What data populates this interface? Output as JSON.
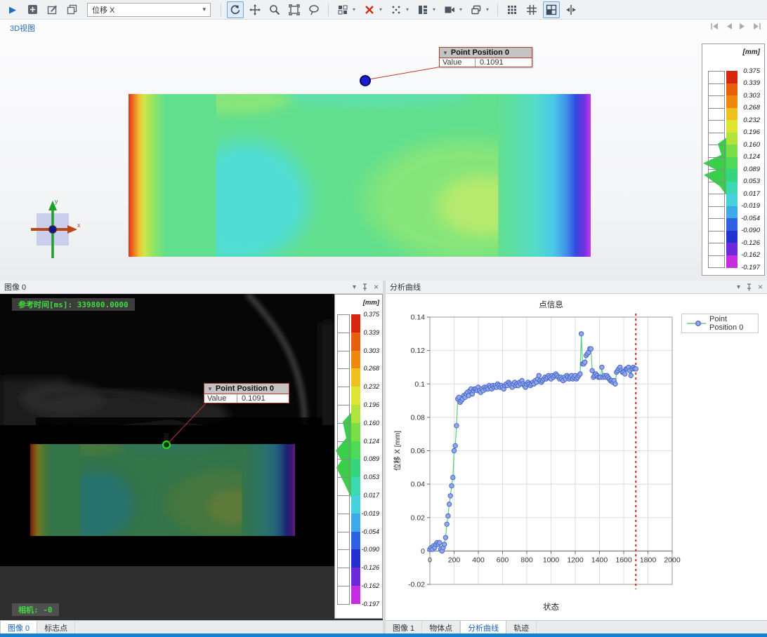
{
  "toolbar": {
    "field_value": "位移 X",
    "icons": [
      "play-icon",
      "add-icon",
      "edit-icon",
      "copy-icon",
      "rotate-icon",
      "pan-icon",
      "zoom-icon",
      "fit-view-icon",
      "balloon-label-icon",
      "fit-window-icon",
      "delete-icon",
      "points-icon",
      "columns-icon",
      "video-icon",
      "layers-icon",
      "grid-dense-icon",
      "grid-sparse-icon",
      "window-layout-icon",
      "collapse-icon"
    ]
  },
  "colors": {
    "accent_blue": "#1a6fc4",
    "status_bar": "#1282d2",
    "annotation_border": "#b03a2e",
    "hud_green": "#3fdc3f",
    "curve_line": "#5fcb7e",
    "marker_fill": "#8fa8ea",
    "marker_edge": "#4a66c8",
    "state_marker_line": "#dd2222"
  },
  "view3d": {
    "tab_label": "3D视图",
    "nav_icons": [
      "first-state-icon",
      "previous-state-icon",
      "next-state-icon",
      "last-state-icon"
    ],
    "triad": {
      "x_label": "x",
      "y_label": "y"
    },
    "annotation": {
      "header": "Point Position 0",
      "rows": [
        {
          "label": "Value",
          "value": "0.1091"
        }
      ]
    }
  },
  "colorbar": {
    "title": "[mm]",
    "labels": [
      "0.375",
      "0.339",
      "0.303",
      "0.268",
      "0.232",
      "0.196",
      "0.160",
      "0.124",
      "0.089",
      "0.053",
      "0.017",
      "-0.019",
      "-0.054",
      "-0.090",
      "-0.126",
      "-0.162",
      "-0.197"
    ],
    "colors": [
      "#d8250d",
      "#e85f0c",
      "#f0880e",
      "#eec11c",
      "#dfe532",
      "#b2e33c",
      "#7adf46",
      "#4ed957",
      "#35d57f",
      "#3cd9b0",
      "#45d2dc",
      "#3fa8e8",
      "#2f62e2",
      "#2430cf",
      "#6c2bda",
      "#c62ce0"
    ]
  },
  "image_panel": {
    "title": "图像 0",
    "time_label": "参考时间[ms]: 339800.0000",
    "camera_label": "相机: -0",
    "annotation": {
      "header": "Point Position 0",
      "rows": [
        {
          "label": "Value",
          "value": "0.1091"
        }
      ]
    },
    "tabs": [
      {
        "label": "图像 0"
      },
      {
        "label": "标志点"
      }
    ]
  },
  "curve_panel": {
    "title": "分析曲线",
    "tabs": [
      {
        "label": "图像 1"
      },
      {
        "label": "物体点"
      },
      {
        "label": "分析曲线"
      },
      {
        "label": "轨迹"
      }
    ]
  },
  "chart_data": {
    "type": "scatter",
    "title": "点信息",
    "xlabel": "状态",
    "ylabel": "位移 X [mm]",
    "xlim": [
      0,
      2000
    ],
    "ylim": [
      -0.02,
      0.14
    ],
    "xticks": [
      0,
      200,
      400,
      600,
      800,
      1000,
      1200,
      1400,
      1600,
      1800,
      2000
    ],
    "yticks": [
      -0.02,
      0,
      0.02,
      0.04,
      0.06,
      0.08,
      0.1,
      0.12,
      0.14
    ],
    "grid": true,
    "legend_position": "top-right",
    "current_state_line_x": 1700,
    "series": [
      {
        "name": "Point Position 0",
        "x": [
          0,
          10,
          20,
          30,
          40,
          50,
          60,
          70,
          80,
          90,
          100,
          110,
          120,
          130,
          140,
          150,
          160,
          170,
          180,
          190,
          200,
          210,
          220,
          230,
          240,
          250,
          260,
          270,
          280,
          290,
          300,
          310,
          320,
          330,
          340,
          350,
          360,
          370,
          380,
          390,
          400,
          410,
          420,
          430,
          440,
          450,
          460,
          470,
          480,
          490,
          500,
          510,
          520,
          530,
          540,
          550,
          560,
          570,
          580,
          590,
          600,
          610,
          620,
          630,
          640,
          650,
          660,
          670,
          680,
          690,
          700,
          710,
          720,
          730,
          740,
          750,
          760,
          770,
          780,
          790,
          800,
          810,
          820,
          830,
          840,
          850,
          860,
          870,
          880,
          890,
          900,
          910,
          920,
          930,
          940,
          950,
          960,
          970,
          980,
          990,
          1000,
          1010,
          1020,
          1030,
          1040,
          1050,
          1060,
          1070,
          1080,
          1090,
          1100,
          1110,
          1120,
          1130,
          1140,
          1150,
          1160,
          1170,
          1180,
          1190,
          1200,
          1210,
          1220,
          1230,
          1240,
          1250,
          1260,
          1270,
          1280,
          1290,
          1300,
          1310,
          1320,
          1330,
          1340,
          1350,
          1360,
          1370,
          1380,
          1390,
          1400,
          1410,
          1420,
          1430,
          1440,
          1450,
          1460,
          1470,
          1480,
          1490,
          1500,
          1510,
          1520,
          1530,
          1540,
          1550,
          1560,
          1570,
          1580,
          1590,
          1600,
          1610,
          1620,
          1630,
          1640,
          1650,
          1660,
          1670,
          1680,
          1690,
          1700
        ],
        "y": [
          0.001,
          0.002,
          0.001,
          0.003,
          0.002,
          0.004,
          0.005,
          0.004,
          0.005,
          0.001,
          0.0,
          0.002,
          0.004,
          0.008,
          0.016,
          0.021,
          0.028,
          0.033,
          0.039,
          0.044,
          0.06,
          0.063,
          0.075,
          0.091,
          0.092,
          0.089,
          0.09,
          0.091,
          0.093,
          0.092,
          0.094,
          0.095,
          0.093,
          0.096,
          0.097,
          0.094,
          0.096,
          0.097,
          0.097,
          0.096,
          0.098,
          0.096,
          0.095,
          0.097,
          0.096,
          0.098,
          0.097,
          0.098,
          0.097,
          0.099,
          0.098,
          0.097,
          0.099,
          0.098,
          0.099,
          0.098,
          0.1,
          0.099,
          0.098,
          0.099,
          0.098,
          0.097,
          0.099,
          0.1,
          0.099,
          0.101,
          0.1,
          0.099,
          0.098,
          0.1,
          0.101,
          0.099,
          0.1,
          0.099,
          0.101,
          0.1,
          0.102,
          0.1,
          0.099,
          0.098,
          0.1,
          0.101,
          0.1,
          0.099,
          0.1,
          0.101,
          0.1,
          0.102,
          0.101,
          0.103,
          0.105,
          0.102,
          0.101,
          0.102,
          0.103,
          0.104,
          0.103,
          0.104,
          0.105,
          0.104,
          0.103,
          0.105,
          0.104,
          0.105,
          0.106,
          0.105,
          0.104,
          0.103,
          0.104,
          0.103,
          0.102,
          0.104,
          0.103,
          0.105,
          0.104,
          0.103,
          0.104,
          0.105,
          0.103,
          0.104,
          0.105,
          0.103,
          0.104,
          0.105,
          0.106,
          0.13,
          0.112,
          0.112,
          0.113,
          0.117,
          0.118,
          0.119,
          0.121,
          0.121,
          0.108,
          0.104,
          0.105,
          0.106,
          0.105,
          0.104,
          0.104,
          0.104,
          0.11,
          0.104,
          0.105,
          0.104,
          0.105,
          0.104,
          0.103,
          0.102,
          0.102,
          0.101,
          0.102,
          0.1,
          0.107,
          0.108,
          0.109,
          0.11,
          0.108,
          0.107,
          0.107,
          0.106,
          0.109,
          0.109,
          0.11,
          0.108,
          0.105,
          0.109,
          0.11,
          0.109,
          0.109
        ]
      }
    ]
  }
}
